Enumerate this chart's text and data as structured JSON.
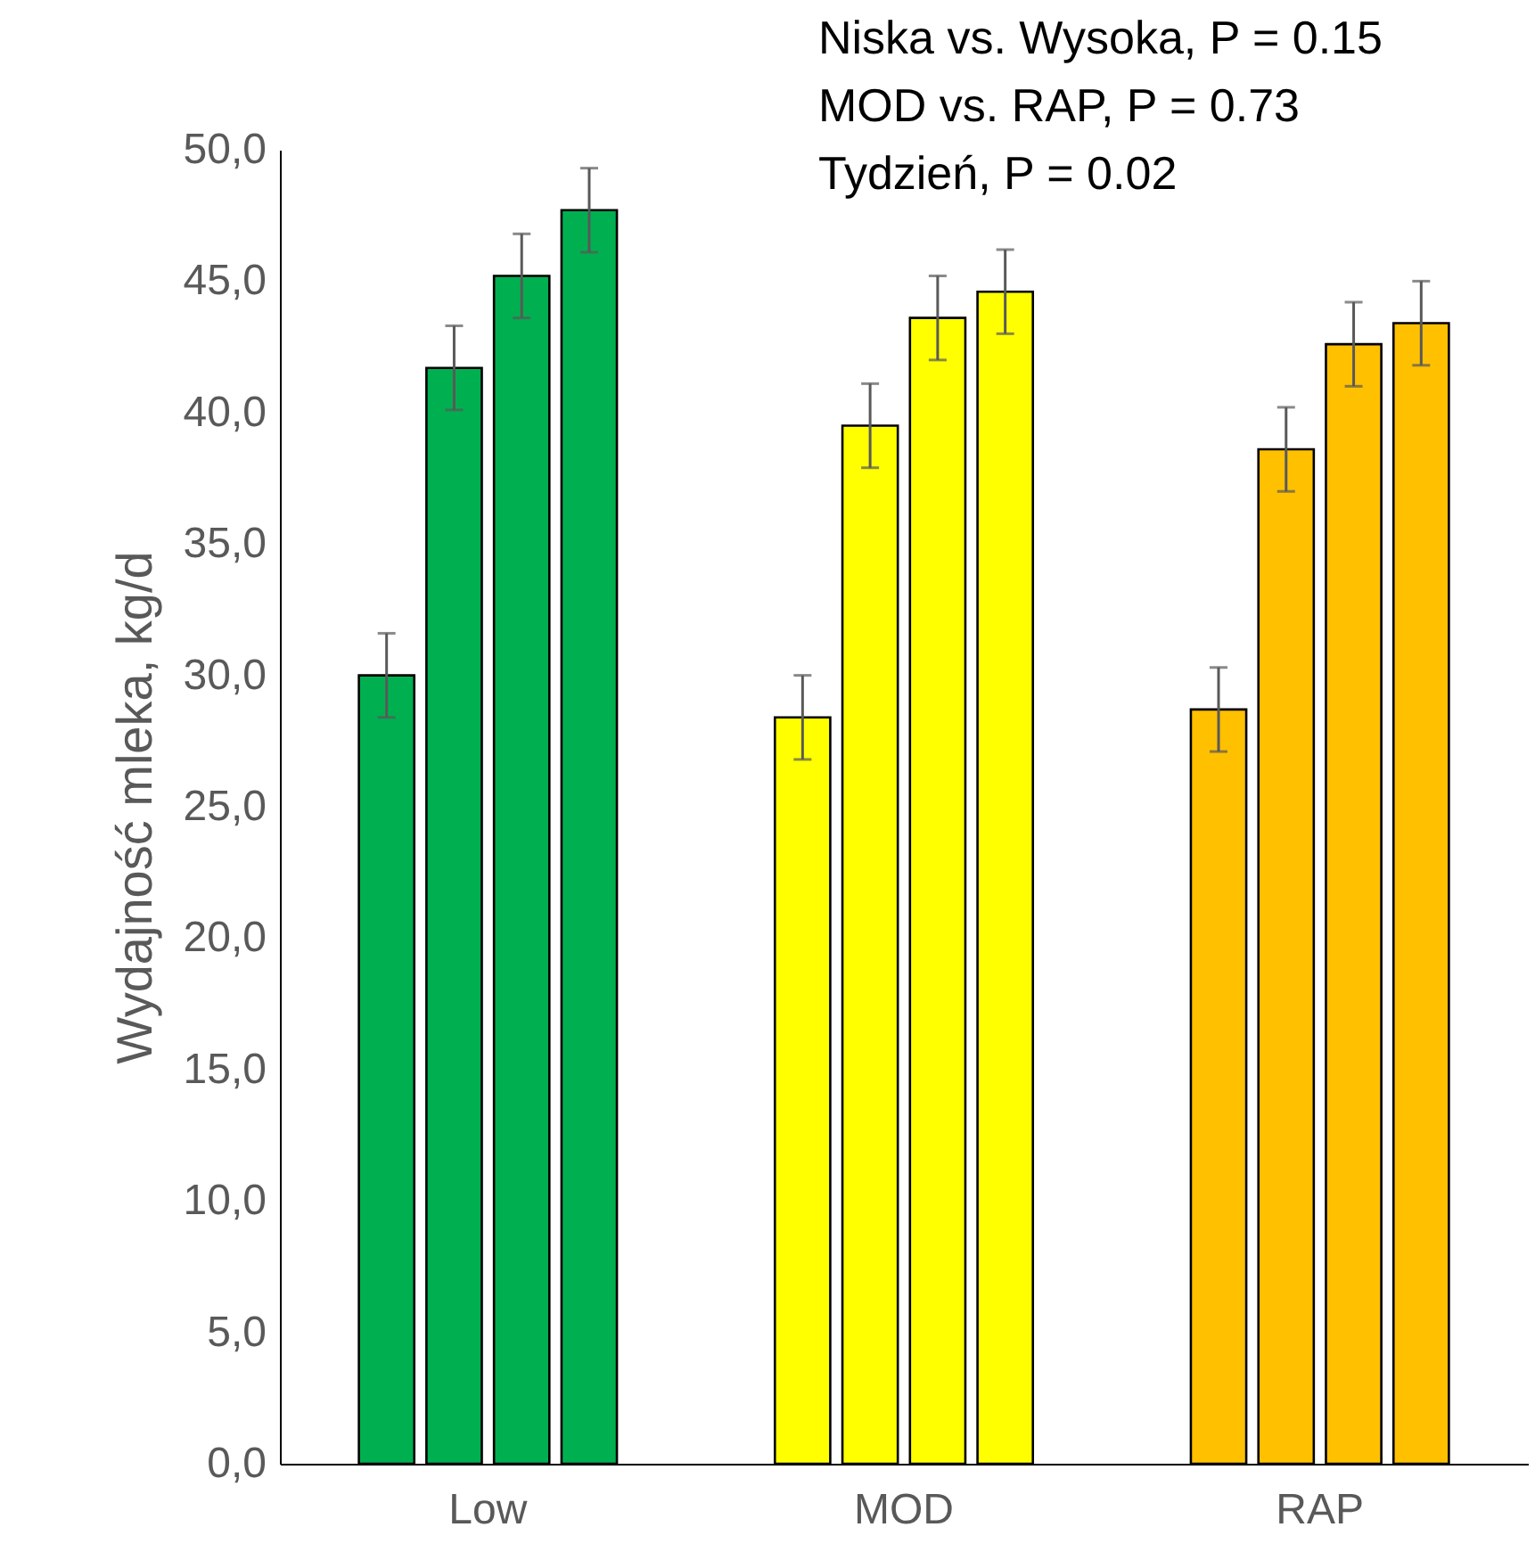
{
  "chart_data": {
    "type": "bar",
    "ylabel": "Wydajność mleka, kg/d",
    "categories": [
      "Low",
      "MOD",
      "RAP"
    ],
    "series": [
      {
        "colors": [
          "#00b050",
          "#ffff00",
          "#ffc000"
        ],
        "values": [
          30.0,
          28.4,
          28.7
        ],
        "errors": [
          1.6,
          1.6,
          1.6
        ]
      },
      {
        "colors": [
          "#00b050",
          "#ffff00",
          "#ffc000"
        ],
        "values": [
          41.7,
          39.5,
          38.6
        ],
        "errors": [
          1.6,
          1.6,
          1.6
        ]
      },
      {
        "colors": [
          "#00b050",
          "#ffff00",
          "#ffc000"
        ],
        "values": [
          45.2,
          43.6,
          42.6
        ],
        "errors": [
          1.6,
          1.6,
          1.6
        ]
      },
      {
        "colors": [
          "#00b050",
          "#ffff00",
          "#ffc000"
        ],
        "values": [
          47.7,
          44.6,
          43.4
        ],
        "errors": [
          1.6,
          1.6,
          1.6
        ]
      }
    ],
    "ylim": [
      0,
      50
    ],
    "yticks": [
      {
        "value": 0,
        "label": "0,0"
      },
      {
        "value": 5,
        "label": "5,0"
      },
      {
        "value": 10,
        "label": "10,0"
      },
      {
        "value": 15,
        "label": "15,0"
      },
      {
        "value": 20,
        "label": "20,0"
      },
      {
        "value": 25,
        "label": "25,0"
      },
      {
        "value": 30,
        "label": "30,0"
      },
      {
        "value": 35,
        "label": "35,0"
      },
      {
        "value": 40,
        "label": "40,0"
      },
      {
        "value": 45,
        "label": "45,0"
      },
      {
        "value": 50,
        "label": "50,0"
      }
    ],
    "annotations": [
      "Niska vs. Wysoka, P = 0.15",
      "MOD vs. RAP, P = 0.73",
      "Tydzień, P = 0.02"
    ],
    "grid": false
  }
}
